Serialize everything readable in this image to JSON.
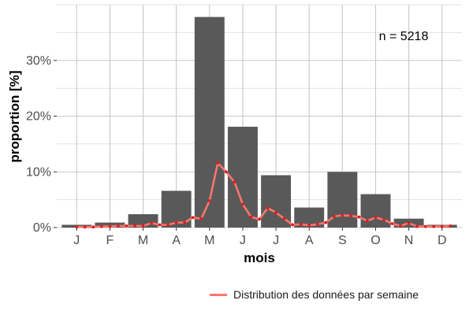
{
  "chart_data": {
    "type": "bar",
    "xlabel": "mois",
    "ylabel": "proportion [%]",
    "annotation": "n = 5218",
    "categories": [
      "J",
      "F",
      "M",
      "A",
      "M",
      "J",
      "J",
      "A",
      "S",
      "O",
      "N",
      "D"
    ],
    "values": [
      0.5,
      0.9,
      2.4,
      6.6,
      37.8,
      18.1,
      9.4,
      3.6,
      10.0,
      6.0,
      1.6,
      0.5
    ],
    "ylim": [
      0,
      40
    ],
    "yticks": [
      0,
      10,
      20,
      30
    ],
    "ytick_labels": [
      "0%",
      "10%",
      "20%",
      "30%"
    ],
    "bar_color": "#595959",
    "grid": true,
    "legend_position": "bottom-right",
    "line_series": {
      "name": "Distribution des données par semaine",
      "color": "#f8766d",
      "point_color": "#e31a1c",
      "x": [
        1.0,
        1.25,
        1.5,
        1.75,
        2.0,
        2.25,
        2.5,
        2.75,
        3.0,
        3.25,
        3.5,
        3.75,
        4.0,
        4.25,
        4.5,
        4.75,
        5.0,
        5.25,
        5.5,
        5.75,
        6.0,
        6.25,
        6.5,
        6.75,
        7.0,
        7.25,
        7.5,
        7.75,
        8.0,
        8.25,
        8.5,
        8.75,
        9.0,
        9.25,
        9.5,
        9.75,
        10.0,
        10.25,
        10.5,
        10.75,
        11.0,
        11.25,
        11.5,
        11.75,
        12.0,
        12.25
      ],
      "y": [
        0.1,
        0.1,
        0.1,
        0.2,
        0.2,
        0.3,
        0.3,
        0.3,
        0.3,
        0.8,
        0.5,
        0.5,
        0.9,
        0.9,
        1.8,
        1.6,
        4.8,
        11.6,
        10.0,
        8.2,
        4.2,
        1.9,
        1.5,
        3.5,
        2.7,
        1.6,
        0.5,
        0.6,
        0.4,
        0.6,
        0.9,
        2.0,
        2.2,
        2.1,
        1.9,
        1.2,
        1.8,
        1.4,
        0.7,
        0.3,
        0.8,
        0.2,
        0.2,
        0.2,
        0.2,
        0.3
      ]
    }
  }
}
